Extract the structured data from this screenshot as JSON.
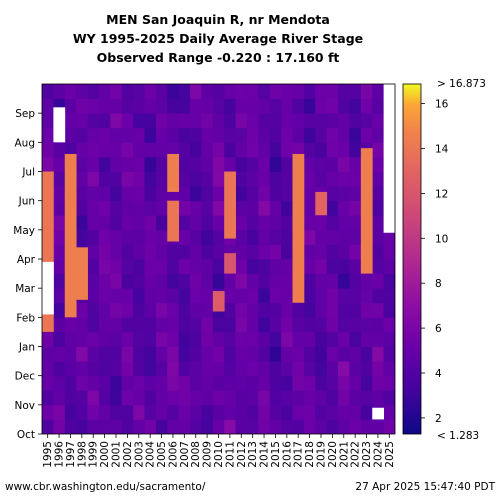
{
  "chart_data": {
    "type": "heatmap",
    "title_lines": [
      "MEN San Joaquin R, nr Mendota",
      "WY 1995-2025 Daily Average River Stage",
      "Observed Range -0.220 : 17.160 ft"
    ],
    "x_years": [
      "1995",
      "1996",
      "1997",
      "1998",
      "1999",
      "2000",
      "2001",
      "2002",
      "2003",
      "2004",
      "2005",
      "2006",
      "2007",
      "2008",
      "2009",
      "2010",
      "2011",
      "2012",
      "2013",
      "2014",
      "2015",
      "2016",
      "2017",
      "2018",
      "2019",
      "2020",
      "2021",
      "2022",
      "2023",
      "2024",
      "2025"
    ],
    "y_months": [
      "Oct",
      "Nov",
      "Dec",
      "Jan",
      "Feb",
      "Mar",
      "Apr",
      "May",
      "Jun",
      "Jul",
      "Aug",
      "Sep"
    ],
    "colorbar": {
      "min": 1.283,
      "max": 16.873,
      "min_label": "< 1.283",
      "max_label": "> 16.873",
      "ticks": [
        2,
        4,
        6,
        8,
        10,
        12,
        14,
        16
      ]
    },
    "units": "ft",
    "high_stage_periods": [
      {
        "year": "1995",
        "start_month": 3.5,
        "end_month": 9.0,
        "value": 14.0
      },
      {
        "year": "1997",
        "start_month": 4.0,
        "end_month": 9.6,
        "value": 14.5
      },
      {
        "year": "1998",
        "start_month": 4.6,
        "end_month": 6.4,
        "value": 14.5
      },
      {
        "year": "2006",
        "start_month": 6.6,
        "end_month": 8.0,
        "value": 14.0
      },
      {
        "year": "2006",
        "start_month": 8.3,
        "end_month": 9.6,
        "value": 14.5
      },
      {
        "year": "2010",
        "start_month": 4.2,
        "end_month": 4.9,
        "value": 12.5
      },
      {
        "year": "2011",
        "start_month": 6.7,
        "end_month": 9.0,
        "value": 14.0
      },
      {
        "year": "2011",
        "start_month": 5.5,
        "end_month": 6.2,
        "value": 12.0
      },
      {
        "year": "2017",
        "start_month": 4.5,
        "end_month": 9.6,
        "value": 14.5
      },
      {
        "year": "2019",
        "start_month": 7.5,
        "end_month": 8.3,
        "value": 13.0
      },
      {
        "year": "2023",
        "start_month": 5.5,
        "end_month": 9.8,
        "value": 14.5
      }
    ],
    "missing_periods": [
      {
        "year": "1995",
        "start_month": 4.1,
        "end_month": 5.9
      },
      {
        "year": "1996",
        "start_month": 10.0,
        "end_month": 11.2
      },
      {
        "year": "2024",
        "start_month": 0.5,
        "end_month": 0.9
      },
      {
        "year": "2025",
        "start_month": 6.9,
        "end_month": 12.0
      }
    ]
  },
  "footer": {
    "source": "www.cbr.washington.edu/sacramento/",
    "timestamp": "27 Apr 2025 15:47:40 PDT"
  }
}
